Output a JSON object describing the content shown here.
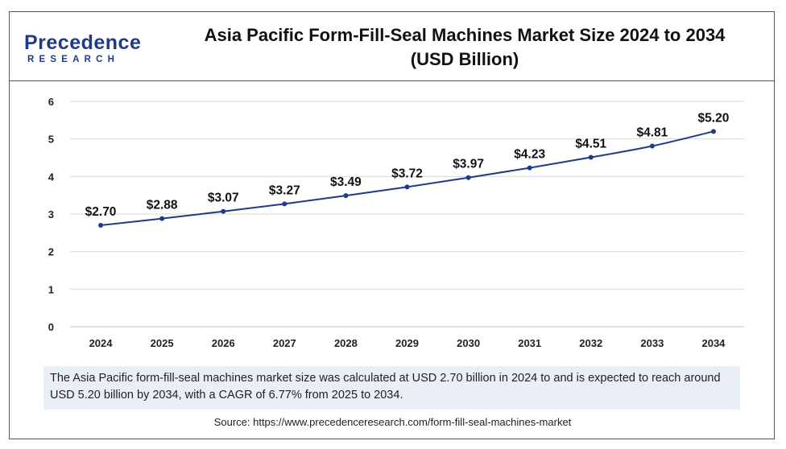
{
  "header": {
    "logo_main": "Precedence",
    "logo_sub": "RESEARCH",
    "title_line1": "Asia Pacific Form-Fill-Seal Machines Market Size 2024 to 2034",
    "title_line2": "(USD Billion)"
  },
  "chart_data": {
    "type": "line",
    "title": "Asia Pacific Form-Fill-Seal Machines Market Size 2024 to 2034 (USD Billion)",
    "categories": [
      "2024",
      "2025",
      "2026",
      "2027",
      "2028",
      "2029",
      "2030",
      "2031",
      "2032",
      "2033",
      "2034"
    ],
    "values": [
      2.7,
      2.88,
      3.07,
      3.27,
      3.49,
      3.72,
      3.97,
      4.23,
      4.51,
      4.81,
      5.2
    ],
    "data_labels": [
      "$2.70",
      "$2.88",
      "$3.07",
      "$3.27",
      "$3.49",
      "$3.72",
      "$3.97",
      "$4.23",
      "$4.51",
      "$4.81",
      "$5.20"
    ],
    "yticks": [
      "0",
      "1",
      "2",
      "3",
      "4",
      "5",
      "6"
    ],
    "ylim": [
      0,
      6
    ],
    "xlabel": "",
    "ylabel": "",
    "grid": true,
    "line_color": "#1f3a8a",
    "grid_color": "#d9d9d9"
  },
  "note": "The Asia Pacific form-fill-seal machines market size was calculated at USD 2.70 billion in 2024 to and is expected to reach around USD 5.20 billion by 2034, with a CAGR of 6.77% from 2025 to 2034.",
  "source": "Source: https://www.precedenceresearch.com/form-fill-seal-machines-market"
}
